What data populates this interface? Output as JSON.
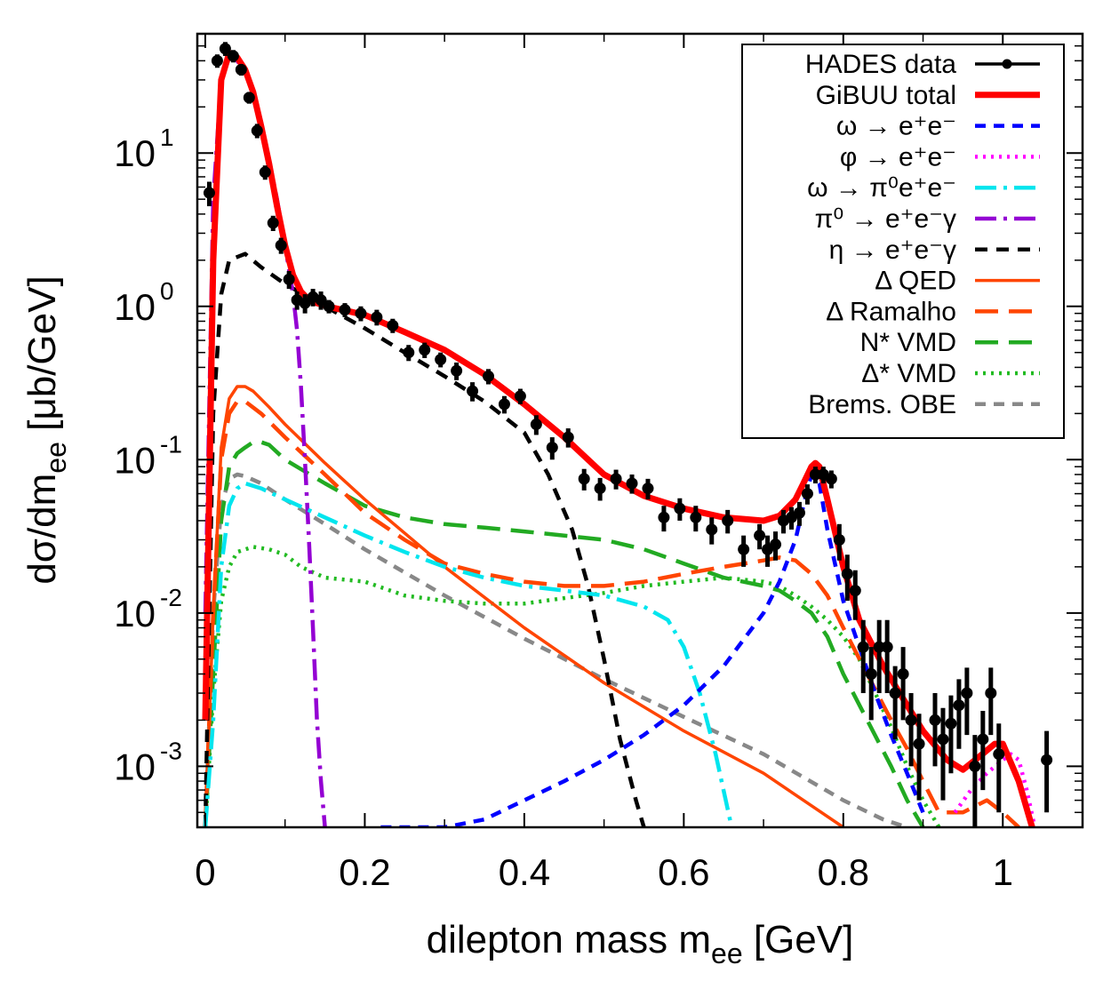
{
  "chart_data": {
    "type": "line",
    "title": "",
    "xlabel": {
      "text": "dilepton mass m",
      "sub": "ee",
      "unit": " [GeV]"
    },
    "ylabel": {
      "text": "dσ/dm",
      "sub": "ee",
      "unit": " [μb/GeV]"
    },
    "xlim": [
      -0.01,
      1.1
    ],
    "ylim": [
      0.0004,
      60
    ],
    "yscale": "log",
    "grid": false,
    "legend_position": "top-right",
    "x_ticks": [
      {
        "value": 0,
        "label": "0"
      },
      {
        "value": 0.2,
        "label": "0.2"
      },
      {
        "value": 0.4,
        "label": "0.4"
      },
      {
        "value": 0.6,
        "label": "0.6"
      },
      {
        "value": 0.8,
        "label": "0.8"
      },
      {
        "value": 1,
        "label": "1"
      }
    ],
    "y_ticks": [
      {
        "value": 10,
        "base": "10",
        "exp": "1"
      },
      {
        "value": 1,
        "base": "10",
        "exp": "0"
      },
      {
        "value": 0.1,
        "base": "10",
        "exp": "-1"
      },
      {
        "value": 0.01,
        "base": "10",
        "exp": "-2"
      },
      {
        "value": 0.001,
        "base": "10",
        "exp": "-3"
      }
    ],
    "series": [
      {
        "name": "HADES data",
        "color": "#000000",
        "style": "points",
        "x": [
          0.005,
          0.015,
          0.025,
          0.035,
          0.045,
          0.055,
          0.065,
          0.075,
          0.085,
          0.095,
          0.105,
          0.115,
          0.125,
          0.135,
          0.145,
          0.155,
          0.175,
          0.195,
          0.215,
          0.235,
          0.255,
          0.275,
          0.295,
          0.315,
          0.335,
          0.355,
          0.375,
          0.395,
          0.415,
          0.435,
          0.455,
          0.475,
          0.495,
          0.515,
          0.535,
          0.555,
          0.575,
          0.595,
          0.615,
          0.635,
          0.655,
          0.675,
          0.695,
          0.705,
          0.715,
          0.725,
          0.735,
          0.745,
          0.755,
          0.765,
          0.775,
          0.785,
          0.795,
          0.805,
          0.815,
          0.825,
          0.835,
          0.845,
          0.855,
          0.865,
          0.875,
          0.885,
          0.895,
          0.915,
          0.925,
          0.935,
          0.945,
          0.955,
          0.965,
          0.975,
          0.985,
          0.995,
          1.055
        ],
        "y": [
          5.5,
          40,
          48,
          43,
          35,
          23,
          14,
          7.5,
          3.5,
          2.5,
          1.5,
          1.1,
          1.05,
          1.15,
          1.1,
          1.0,
          0.95,
          0.9,
          0.85,
          0.75,
          0.5,
          0.52,
          0.45,
          0.38,
          0.28,
          0.35,
          0.23,
          0.26,
          0.17,
          0.12,
          0.14,
          0.075,
          0.065,
          0.075,
          0.07,
          0.065,
          0.042,
          0.048,
          0.042,
          0.035,
          0.04,
          0.026,
          0.032,
          0.026,
          0.028,
          0.04,
          0.042,
          0.045,
          0.06,
          0.08,
          0.08,
          0.075,
          0.03,
          0.018,
          0.014,
          0.006,
          0.004,
          0.006,
          0.006,
          0.003,
          0.004,
          0.002,
          0.0014,
          0.002,
          0.0015,
          0.0019,
          0.0025,
          0.003,
          0.001,
          0.0015,
          0.003,
          0.0012,
          0.0011
        ],
        "err": [
          1.0,
          4,
          5,
          4,
          3,
          2,
          1.5,
          0.8,
          0.4,
          0.3,
          0.2,
          0.15,
          0.15,
          0.15,
          0.15,
          0.1,
          0.1,
          0.1,
          0.1,
          0.08,
          0.06,
          0.06,
          0.05,
          0.05,
          0.04,
          0.04,
          0.03,
          0.03,
          0.025,
          0.02,
          0.02,
          0.012,
          0.011,
          0.011,
          0.01,
          0.01,
          0.008,
          0.008,
          0.008,
          0.007,
          0.007,
          0.006,
          0.006,
          0.006,
          0.006,
          0.007,
          0.007,
          0.008,
          0.009,
          0.01,
          0.01,
          0.01,
          0.008,
          0.006,
          0.005,
          0.003,
          0.002,
          0.003,
          0.003,
          0.0015,
          0.002,
          0.001,
          0.0008,
          0.001,
          0.0009,
          0.001,
          0.0012,
          0.0014,
          0.0006,
          0.0008,
          0.0014,
          0.0007,
          0.0006
        ]
      },
      {
        "name": "GiBUU total",
        "color": "#ff0000",
        "style": "solid-thick",
        "x": [
          0.0,
          0.01,
          0.02,
          0.03,
          0.04,
          0.05,
          0.06,
          0.07,
          0.08,
          0.09,
          0.1,
          0.11,
          0.12,
          0.13,
          0.14,
          0.16,
          0.2,
          0.25,
          0.3,
          0.35,
          0.4,
          0.45,
          0.48,
          0.5,
          0.55,
          0.6,
          0.65,
          0.7,
          0.72,
          0.74,
          0.75,
          0.76,
          0.765,
          0.77,
          0.78,
          0.8,
          0.82,
          0.85,
          0.88,
          0.9,
          0.93,
          0.95,
          0.97,
          0.99,
          1.0,
          1.02,
          1.04
        ],
        "y": [
          0.002,
          2.0,
          30,
          45,
          42,
          35,
          25,
          15,
          8.5,
          4.5,
          2.5,
          1.6,
          1.25,
          1.1,
          1.05,
          0.98,
          0.88,
          0.68,
          0.52,
          0.36,
          0.23,
          0.14,
          0.1,
          0.08,
          0.058,
          0.048,
          0.042,
          0.04,
          0.043,
          0.055,
          0.07,
          0.09,
          0.095,
          0.09,
          0.055,
          0.02,
          0.009,
          0.0045,
          0.0025,
          0.0017,
          0.0011,
          0.00095,
          0.00115,
          0.0014,
          0.0014,
          0.0008,
          0.00035
        ]
      },
      {
        "name": "ω → e⁺e⁻",
        "color": "#0000ff",
        "style": "dash-short",
        "x": [
          0.22,
          0.3,
          0.35,
          0.4,
          0.45,
          0.5,
          0.55,
          0.6,
          0.65,
          0.7,
          0.72,
          0.74,
          0.75,
          0.76,
          0.77,
          0.78,
          0.8,
          0.82,
          0.84,
          0.86,
          0.88,
          0.9
        ],
        "y": [
          0.0004,
          0.0004,
          0.00045,
          0.0006,
          0.0008,
          0.0011,
          0.0016,
          0.0025,
          0.0045,
          0.01,
          0.016,
          0.03,
          0.05,
          0.08,
          0.07,
          0.035,
          0.012,
          0.006,
          0.003,
          0.0016,
          0.0009,
          0.0005
        ]
      },
      {
        "name": "φ → e⁺e⁻",
        "color": "#ff00ff",
        "style": "dotted",
        "x": [
          0.94,
          0.96,
          0.98,
          1.0,
          1.01,
          1.02,
          1.03,
          1.04
        ],
        "y": [
          0.0005,
          0.0007,
          0.0009,
          0.0011,
          0.0012,
          0.0011,
          0.0007,
          0.0004
        ]
      },
      {
        "name": "ω → π⁰e⁺e⁻",
        "color": "#00e5ee",
        "style": "dash-dot",
        "x": [
          0.0,
          0.01,
          0.02,
          0.03,
          0.04,
          0.05,
          0.07,
          0.1,
          0.15,
          0.2,
          0.25,
          0.3,
          0.35,
          0.4,
          0.45,
          0.5,
          0.55,
          0.58,
          0.6,
          0.62,
          0.64,
          0.66
        ],
        "y": [
          0.0004,
          0.002,
          0.02,
          0.05,
          0.065,
          0.07,
          0.065,
          0.055,
          0.042,
          0.032,
          0.025,
          0.02,
          0.017,
          0.015,
          0.014,
          0.013,
          0.011,
          0.009,
          0.006,
          0.003,
          0.0012,
          0.0004
        ]
      },
      {
        "name": "π⁰ → e⁺e⁻γ",
        "color": "#9400d3",
        "style": "dash-dot",
        "x": [
          0.0,
          0.01,
          0.02,
          0.03,
          0.04,
          0.05,
          0.06,
          0.07,
          0.08,
          0.09,
          0.1,
          0.11,
          0.115,
          0.12,
          0.125,
          0.13,
          0.135,
          0.14,
          0.145,
          0.15
        ],
        "y": [
          0.01,
          5,
          30,
          42,
          40,
          34,
          25,
          16,
          9,
          5,
          2.5,
          1.2,
          0.7,
          0.3,
          0.1,
          0.03,
          0.008,
          0.002,
          0.0008,
          0.0004
        ]
      },
      {
        "name": "η → e⁺e⁻γ",
        "color": "#000000",
        "style": "dash",
        "x": [
          0.0,
          0.005,
          0.01,
          0.02,
          0.03,
          0.05,
          0.07,
          0.1,
          0.15,
          0.2,
          0.25,
          0.3,
          0.35,
          0.4,
          0.43,
          0.46,
          0.48,
          0.5,
          0.52,
          0.54,
          0.55
        ],
        "y": [
          0.0004,
          0.01,
          0.2,
          1.2,
          2.0,
          2.2,
          1.8,
          1.4,
          1.0,
          0.72,
          0.5,
          0.35,
          0.24,
          0.15,
          0.08,
          0.035,
          0.015,
          0.005,
          0.0015,
          0.0006,
          0.0004
        ]
      },
      {
        "name": "Δ QED",
        "color": "#ff4500",
        "style": "solid",
        "x": [
          0.0,
          0.01,
          0.02,
          0.03,
          0.04,
          0.05,
          0.06,
          0.08,
          0.1,
          0.15,
          0.2,
          0.3,
          0.4,
          0.5,
          0.6,
          0.7,
          0.75,
          0.8
        ],
        "y": [
          0.0004,
          0.01,
          0.12,
          0.25,
          0.3,
          0.3,
          0.28,
          0.22,
          0.17,
          0.095,
          0.055,
          0.02,
          0.008,
          0.0035,
          0.0017,
          0.0009,
          0.0006,
          0.0004
        ]
      },
      {
        "name": "Δ Ramalho",
        "color": "#ff4500",
        "style": "dash-long",
        "x": [
          0.0,
          0.01,
          0.02,
          0.03,
          0.04,
          0.05,
          0.07,
          0.1,
          0.15,
          0.2,
          0.25,
          0.3,
          0.35,
          0.4,
          0.45,
          0.5,
          0.55,
          0.6,
          0.65,
          0.7,
          0.72,
          0.74,
          0.76,
          0.78,
          0.8,
          0.83,
          0.86,
          0.88,
          0.9,
          0.92,
          0.95,
          0.98,
          1.0,
          1.02
        ],
        "y": [
          0.0004,
          0.01,
          0.1,
          0.2,
          0.24,
          0.24,
          0.2,
          0.14,
          0.08,
          0.045,
          0.03,
          0.021,
          0.018,
          0.016,
          0.015,
          0.015,
          0.016,
          0.018,
          0.02,
          0.022,
          0.023,
          0.022,
          0.018,
          0.013,
          0.008,
          0.004,
          0.002,
          0.0013,
          0.0008,
          0.0005,
          0.0005,
          0.0006,
          0.0005,
          0.0004
        ]
      },
      {
        "name": "N* VMD",
        "color": "#22aa22",
        "style": "dash-long",
        "x": [
          0.0,
          0.01,
          0.02,
          0.03,
          0.04,
          0.05,
          0.06,
          0.07,
          0.08,
          0.1,
          0.15,
          0.2,
          0.25,
          0.3,
          0.35,
          0.4,
          0.45,
          0.5,
          0.55,
          0.6,
          0.65,
          0.7,
          0.72,
          0.74,
          0.76,
          0.78,
          0.8,
          0.83,
          0.86,
          0.88,
          0.9
        ],
        "y": [
          0.0004,
          0.004,
          0.04,
          0.09,
          0.11,
          0.12,
          0.13,
          0.13,
          0.125,
          0.1,
          0.07,
          0.05,
          0.042,
          0.038,
          0.036,
          0.034,
          0.032,
          0.03,
          0.026,
          0.021,
          0.017,
          0.015,
          0.014,
          0.012,
          0.01,
          0.007,
          0.004,
          0.002,
          0.001,
          0.0006,
          0.0004
        ]
      },
      {
        "name": "Δ* VMD",
        "color": "#22bb22",
        "style": "dotted",
        "x": [
          0.0,
          0.01,
          0.02,
          0.03,
          0.04,
          0.06,
          0.08,
          0.1,
          0.12,
          0.15,
          0.2,
          0.25,
          0.3,
          0.35,
          0.4,
          0.45,
          0.5,
          0.55,
          0.6,
          0.65,
          0.7,
          0.72,
          0.74,
          0.76,
          0.78,
          0.8,
          0.82,
          0.84,
          0.86,
          0.88,
          0.9,
          0.92
        ],
        "y": [
          0.0004,
          0.003,
          0.012,
          0.02,
          0.025,
          0.027,
          0.026,
          0.024,
          0.02,
          0.017,
          0.016,
          0.013,
          0.012,
          0.0115,
          0.0115,
          0.0125,
          0.0135,
          0.015,
          0.016,
          0.017,
          0.016,
          0.015,
          0.013,
          0.011,
          0.009,
          0.007,
          0.005,
          0.003,
          0.0018,
          0.001,
          0.0006,
          0.0004
        ]
      },
      {
        "name": "Brems. OBE",
        "color": "#888888",
        "style": "dash-short",
        "x": [
          0.0,
          0.01,
          0.02,
          0.03,
          0.04,
          0.05,
          0.07,
          0.1,
          0.15,
          0.2,
          0.3,
          0.4,
          0.5,
          0.6,
          0.7,
          0.8,
          0.85,
          0.88
        ],
        "y": [
          0.0004,
          0.01,
          0.05,
          0.075,
          0.08,
          0.078,
          0.07,
          0.055,
          0.038,
          0.026,
          0.013,
          0.0068,
          0.0037,
          0.0021,
          0.0012,
          0.0006,
          0.00045,
          0.0004
        ]
      }
    ]
  }
}
